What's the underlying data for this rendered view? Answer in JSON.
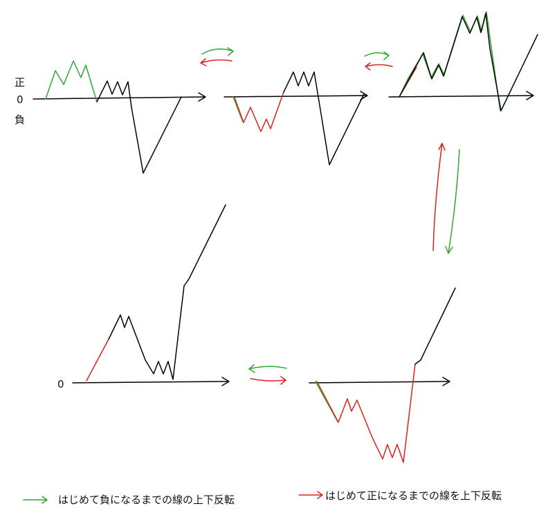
{
  "axis_labels": {
    "positive": "正",
    "zero": "0",
    "negative": "負",
    "zero_bottom": "0"
  },
  "legend": {
    "green_text": "はじめて負になるまでの線の上下反転",
    "red_text": "はじめて正になるまでの線を上下反転"
  },
  "colors": {
    "green": "#2fa82f",
    "red": "#e0201c",
    "line": "#000000"
  }
}
